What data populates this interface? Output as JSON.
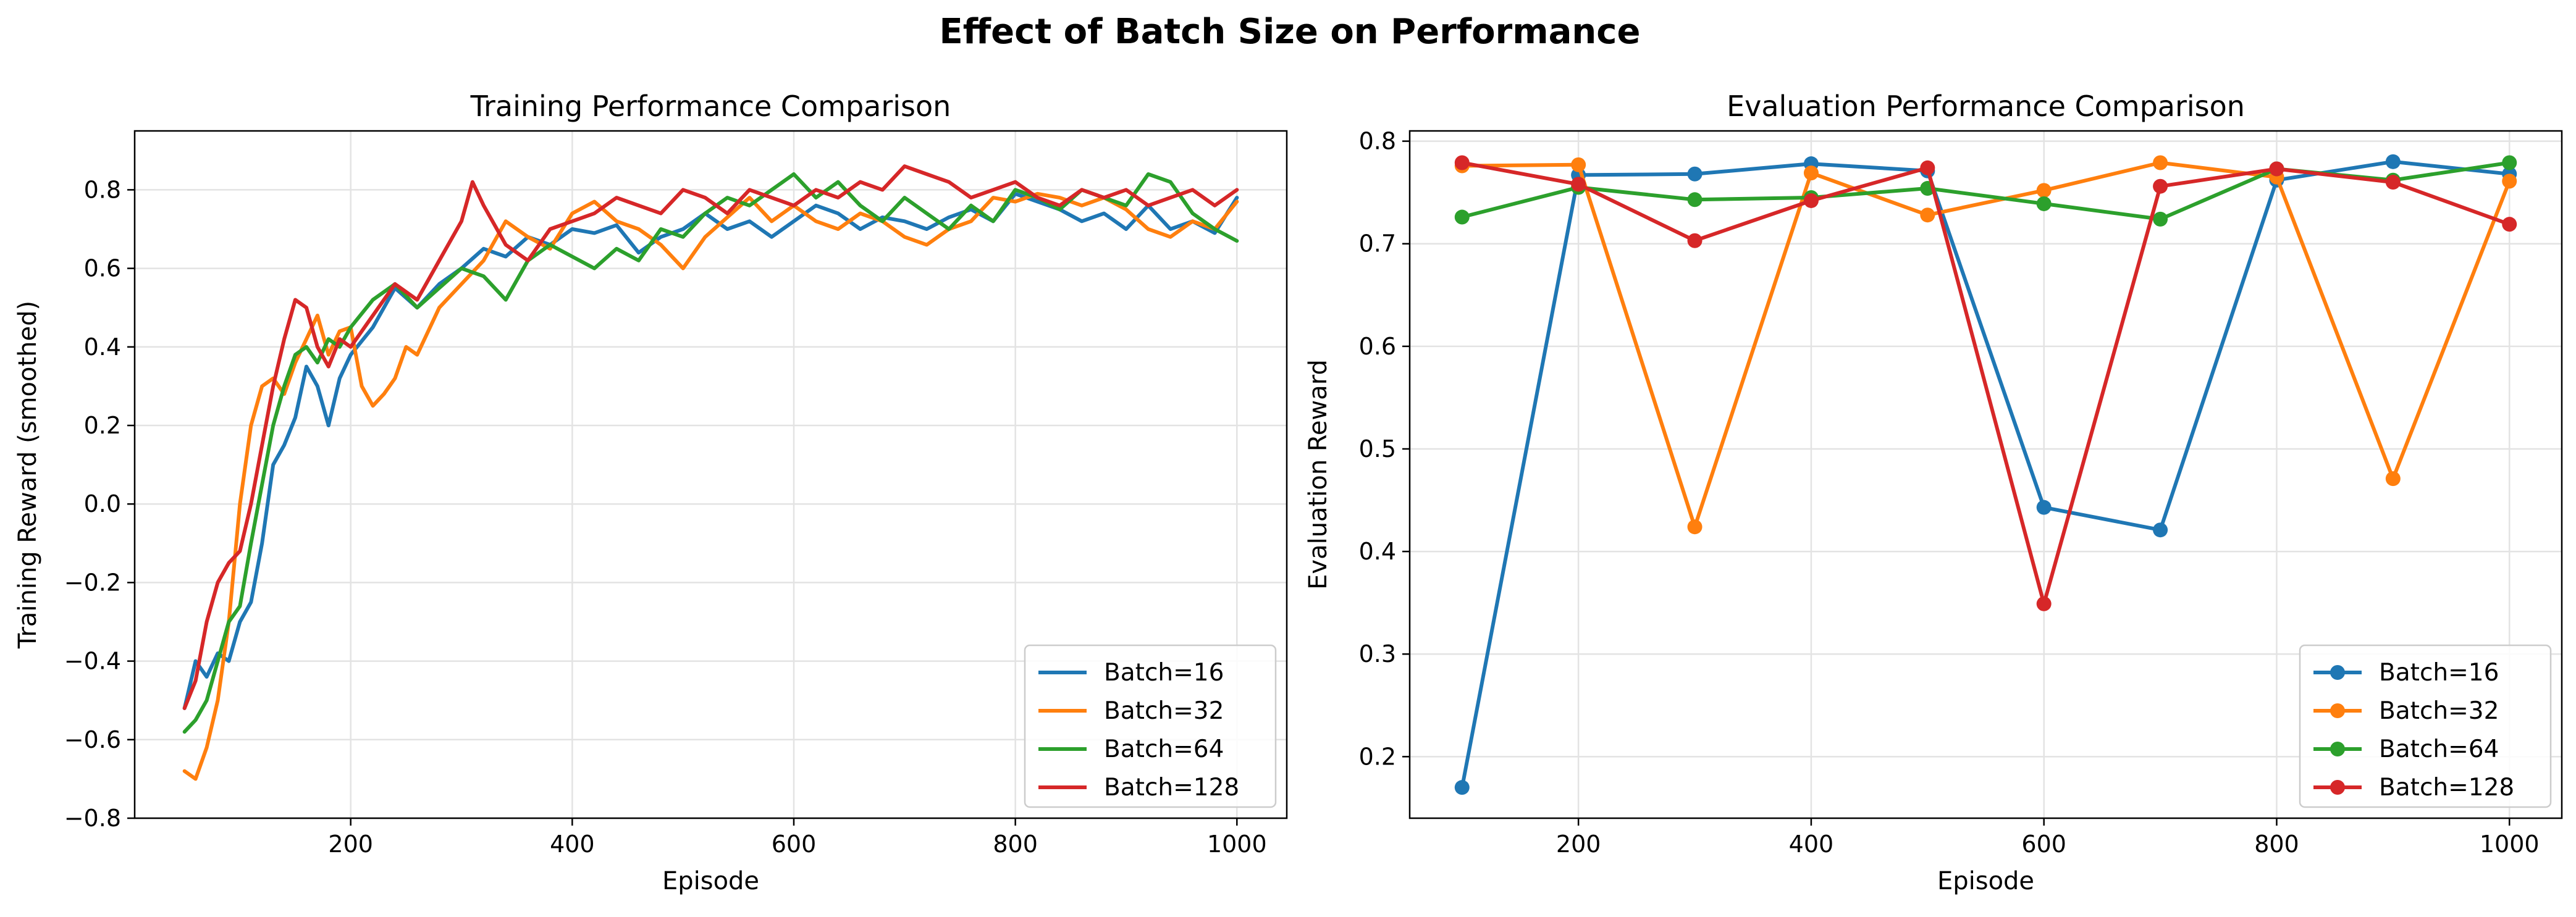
{
  "figure_title": "Effect of Batch Size on Performance",
  "colors": {
    "Batch=16": "#1f77b4",
    "Batch=32": "#ff7f0e",
    "Batch=64": "#2ca02c",
    "Batch=128": "#d62728"
  },
  "chart_data": [
    {
      "type": "line",
      "title": "Training Performance Comparison",
      "xlabel": "Episode",
      "ylabel": "Training Reward (smoothed)",
      "xlim": [
        5,
        1045
      ],
      "ylim": [
        -0.8,
        0.95
      ],
      "xticks": [
        200,
        400,
        600,
        800,
        1000
      ],
      "yticks": [
        -0.8,
        -0.6,
        -0.4,
        -0.2,
        0.0,
        0.2,
        0.4,
        0.6,
        0.8
      ],
      "grid": true,
      "legend_position": "lower-right",
      "series": [
        {
          "name": "Batch=16",
          "x": [
            50,
            60,
            70,
            80,
            90,
            100,
            110,
            120,
            130,
            140,
            150,
            160,
            170,
            180,
            190,
            200,
            220,
            240,
            260,
            280,
            300,
            320,
            340,
            360,
            380,
            400,
            420,
            440,
            460,
            480,
            500,
            520,
            540,
            560,
            580,
            600,
            620,
            640,
            660,
            680,
            700,
            720,
            740,
            760,
            780,
            800,
            820,
            840,
            860,
            880,
            900,
            920,
            940,
            960,
            980,
            1000
          ],
          "values": [
            -0.52,
            -0.4,
            -0.44,
            -0.38,
            -0.4,
            -0.3,
            -0.25,
            -0.1,
            0.1,
            0.15,
            0.22,
            0.35,
            0.3,
            0.2,
            0.32,
            0.38,
            0.45,
            0.55,
            0.5,
            0.56,
            0.6,
            0.65,
            0.63,
            0.68,
            0.66,
            0.7,
            0.69,
            0.71,
            0.64,
            0.68,
            0.7,
            0.74,
            0.7,
            0.72,
            0.68,
            0.72,
            0.76,
            0.74,
            0.7,
            0.73,
            0.72,
            0.7,
            0.73,
            0.75,
            0.72,
            0.79,
            0.77,
            0.75,
            0.72,
            0.74,
            0.7,
            0.76,
            0.7,
            0.72,
            0.69,
            0.78
          ]
        },
        {
          "name": "Batch=32",
          "x": [
            50,
            60,
            70,
            80,
            90,
            100,
            110,
            120,
            130,
            140,
            150,
            160,
            170,
            180,
            190,
            200,
            210,
            220,
            230,
            240,
            250,
            260,
            280,
            300,
            320,
            340,
            360,
            380,
            400,
            420,
            440,
            460,
            480,
            500,
            520,
            540,
            560,
            580,
            600,
            620,
            640,
            660,
            680,
            700,
            720,
            740,
            760,
            780,
            800,
            820,
            840,
            860,
            880,
            900,
            920,
            940,
            960,
            980,
            1000
          ],
          "values": [
            -0.68,
            -0.7,
            -0.62,
            -0.5,
            -0.3,
            0.0,
            0.2,
            0.3,
            0.32,
            0.28,
            0.36,
            0.42,
            0.48,
            0.38,
            0.44,
            0.45,
            0.3,
            0.25,
            0.28,
            0.32,
            0.4,
            0.38,
            0.5,
            0.56,
            0.62,
            0.72,
            0.68,
            0.65,
            0.74,
            0.77,
            0.72,
            0.7,
            0.66,
            0.6,
            0.68,
            0.73,
            0.78,
            0.72,
            0.76,
            0.72,
            0.7,
            0.74,
            0.72,
            0.68,
            0.66,
            0.7,
            0.72,
            0.78,
            0.77,
            0.79,
            0.78,
            0.76,
            0.78,
            0.75,
            0.7,
            0.68,
            0.72,
            0.7,
            0.77
          ]
        },
        {
          "name": "Batch=64",
          "x": [
            50,
            60,
            70,
            80,
            90,
            100,
            110,
            120,
            130,
            140,
            150,
            160,
            170,
            180,
            190,
            200,
            220,
            240,
            260,
            280,
            300,
            320,
            340,
            360,
            380,
            400,
            420,
            440,
            460,
            480,
            500,
            520,
            540,
            560,
            580,
            600,
            620,
            640,
            660,
            680,
            700,
            720,
            740,
            760,
            780,
            800,
            820,
            840,
            860,
            880,
            900,
            920,
            940,
            960,
            980,
            1000
          ],
          "values": [
            -0.58,
            -0.55,
            -0.5,
            -0.4,
            -0.3,
            -0.26,
            -0.1,
            0.05,
            0.2,
            0.3,
            0.38,
            0.4,
            0.36,
            0.42,
            0.4,
            0.45,
            0.52,
            0.56,
            0.5,
            0.55,
            0.6,
            0.58,
            0.52,
            0.62,
            0.66,
            0.63,
            0.6,
            0.65,
            0.62,
            0.7,
            0.68,
            0.74,
            0.78,
            0.76,
            0.8,
            0.84,
            0.78,
            0.82,
            0.76,
            0.72,
            0.78,
            0.74,
            0.7,
            0.76,
            0.72,
            0.8,
            0.78,
            0.75,
            0.8,
            0.78,
            0.76,
            0.84,
            0.82,
            0.74,
            0.7,
            0.67
          ]
        },
        {
          "name": "Batch=128",
          "x": [
            50,
            60,
            70,
            80,
            90,
            100,
            110,
            120,
            130,
            140,
            150,
            160,
            170,
            180,
            190,
            200,
            220,
            240,
            260,
            280,
            300,
            310,
            320,
            340,
            360,
            380,
            400,
            420,
            440,
            460,
            480,
            500,
            520,
            540,
            560,
            580,
            600,
            620,
            640,
            660,
            680,
            700,
            720,
            740,
            760,
            780,
            800,
            820,
            840,
            860,
            880,
            900,
            920,
            940,
            960,
            980,
            1000
          ],
          "values": [
            -0.52,
            -0.45,
            -0.3,
            -0.2,
            -0.15,
            -0.12,
            0.0,
            0.15,
            0.3,
            0.42,
            0.52,
            0.5,
            0.4,
            0.35,
            0.42,
            0.4,
            0.48,
            0.56,
            0.52,
            0.62,
            0.72,
            0.82,
            0.76,
            0.66,
            0.62,
            0.7,
            0.72,
            0.74,
            0.78,
            0.76,
            0.74,
            0.8,
            0.78,
            0.74,
            0.8,
            0.78,
            0.76,
            0.8,
            0.78,
            0.82,
            0.8,
            0.86,
            0.84,
            0.82,
            0.78,
            0.8,
            0.82,
            0.78,
            0.76,
            0.8,
            0.78,
            0.8,
            0.76,
            0.78,
            0.8,
            0.76,
            0.8
          ]
        }
      ]
    },
    {
      "type": "line",
      "title": "Evaluation Performance Comparison",
      "xlabel": "Episode",
      "ylabel": "Evaluation Reward",
      "x": [
        100,
        200,
        300,
        400,
        500,
        600,
        700,
        800,
        900,
        1000
      ],
      "xlim": [
        55,
        1045
      ],
      "ylim": [
        0.14,
        0.81
      ],
      "xticks": [
        200,
        400,
        600,
        800,
        1000
      ],
      "yticks": [
        0.2,
        0.3,
        0.4,
        0.5,
        0.6,
        0.7,
        0.8
      ],
      "grid": true,
      "markers": true,
      "legend_position": "lower-right",
      "series": [
        {
          "name": "Batch=16",
          "values": [
            0.17,
            0.767,
            0.768,
            0.778,
            0.771,
            0.443,
            0.421,
            0.762,
            0.78,
            0.768
          ]
        },
        {
          "name": "Batch=32",
          "values": [
            0.776,
            0.777,
            0.424,
            0.769,
            0.728,
            0.752,
            0.779,
            0.765,
            0.471,
            0.761
          ]
        },
        {
          "name": "Batch=64",
          "values": [
            0.726,
            0.755,
            0.743,
            0.745,
            0.754,
            0.739,
            0.724,
            0.773,
            0.762,
            0.779
          ]
        },
        {
          "name": "Batch=128",
          "values": [
            0.779,
            0.758,
            0.703,
            0.742,
            0.774,
            0.349,
            0.756,
            0.773,
            0.76,
            0.719
          ]
        }
      ]
    }
  ]
}
